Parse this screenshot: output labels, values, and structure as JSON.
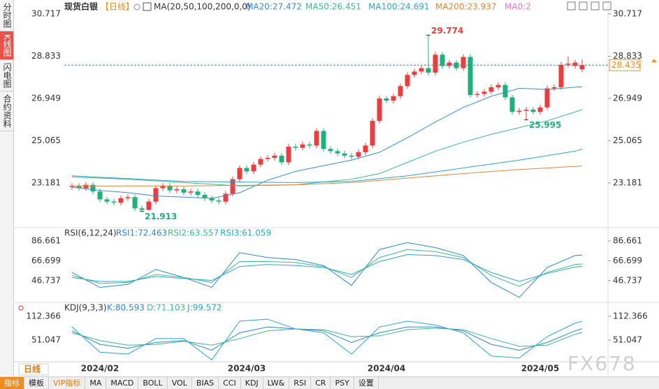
{
  "tabs": [
    "分时图",
    "K线图",
    "闪电图",
    "合约资料"
  ],
  "active_tab": 1,
  "period_selector": "日线",
  "watermark": "FX678",
  "ma0_label": "MA0:2",
  "toolbar": [
    "指标",
    "模板",
    "VIP指标",
    "MA",
    "MACD",
    "BOLL",
    "VOL",
    "BIAS",
    "CCI",
    "KDJ",
    "LW&",
    "RSI",
    "CR",
    "PSY",
    "设置"
  ],
  "chart_data": [
    {
      "type": "candlestick",
      "title": "现货白银",
      "period": "【日线】",
      "indicator": "MA(20,50,100,200,0,0)",
      "up_color": "#ea3d3d",
      "down_color": "#20b07c",
      "categories": [
        null,
        null,
        null,
        null,
        "2024/02",
        null,
        null,
        null,
        null,
        null,
        null,
        null,
        null,
        null,
        null,
        null,
        null,
        null,
        null,
        null,
        null,
        null,
        null,
        null,
        null,
        "2024/03",
        null,
        null,
        null,
        null,
        null,
        null,
        null,
        null,
        null,
        null,
        null,
        null,
        null,
        null,
        null,
        null,
        null,
        null,
        null,
        "2024/04",
        null,
        null,
        null,
        null,
        null,
        null,
        null,
        null,
        null,
        null,
        null,
        null,
        null,
        null,
        null,
        null,
        null,
        null,
        null,
        null,
        null,
        "2024/05",
        null,
        null,
        null,
        null,
        null,
        null
      ],
      "open": [
        23.0,
        23.05,
        22.95,
        23.1,
        22.8,
        22.45,
        22.35,
        22.3,
        22.5,
        22.55,
        22.05,
        21.98,
        22.35,
        22.95,
        23.05,
        22.85,
        22.9,
        22.75,
        22.8,
        22.65,
        22.5,
        22.4,
        22.35,
        22.7,
        23.35,
        23.85,
        23.7,
        24.0,
        24.25,
        24.3,
        24.4,
        24.1,
        24.8,
        24.75,
        24.9,
        24.85,
        25.5,
        24.7,
        24.6,
        24.5,
        24.4,
        24.35,
        24.55,
        24.85,
        25.95,
        26.95,
        26.85,
        27.05,
        27.5,
        28.0,
        28.15,
        28.3,
        28.1,
        28.9,
        28.4,
        28.55,
        28.3,
        28.8,
        27.1,
        27.15,
        27.25,
        27.45,
        27.55,
        27.0,
        26.35,
        26.4,
        26.45,
        26.35,
        26.55,
        27.4,
        27.45,
        28.45,
        28.4,
        28.25
      ],
      "high": [
        23.17,
        23.17,
        23.22,
        23.22,
        22.92,
        22.57,
        22.47,
        22.62,
        22.67,
        22.67,
        22.17,
        22.47,
        23.07,
        23.17,
        23.17,
        23.02,
        23.02,
        22.92,
        22.92,
        22.77,
        22.62,
        22.52,
        22.82,
        23.47,
        23.97,
        23.97,
        24.12,
        24.37,
        24.42,
        24.52,
        24.52,
        24.92,
        24.92,
        25.02,
        25.02,
        25.62,
        25.62,
        24.82,
        24.72,
        24.62,
        24.52,
        24.67,
        24.97,
        26.07,
        27.07,
        27.07,
        27.17,
        27.62,
        28.12,
        28.27,
        28.42,
        29.774,
        29.02,
        29.02,
        28.67,
        28.67,
        28.92,
        28.92,
        27.27,
        27.37,
        27.57,
        27.67,
        27.67,
        27.12,
        26.52,
        26.57,
        26.57,
        26.67,
        27.52,
        27.57,
        28.57,
        28.82,
        28.67,
        28.7
      ],
      "low": [
        22.88,
        22.83,
        22.83,
        22.68,
        22.33,
        22.23,
        22.18,
        22.18,
        22.38,
        21.93,
        21.913,
        21.95,
        22.23,
        22.83,
        22.73,
        22.73,
        22.63,
        22.63,
        22.53,
        22.38,
        22.28,
        22.23,
        22.23,
        22.58,
        23.23,
        23.58,
        23.58,
        23.88,
        24.13,
        24.18,
        23.98,
        23.98,
        24.63,
        24.63,
        24.73,
        24.73,
        24.58,
        24.48,
        24.38,
        24.28,
        24.23,
        24.23,
        24.43,
        24.73,
        25.83,
        26.73,
        26.73,
        26.93,
        27.38,
        27.88,
        28.03,
        27.98,
        27.98,
        28.28,
        28.28,
        28.18,
        28.18,
        26.98,
        26.98,
        27.03,
        27.13,
        27.33,
        26.88,
        26.23,
        26.23,
        25.995,
        26.23,
        26.23,
        26.43,
        27.28,
        27.33,
        28.33,
        28.28,
        28.13
      ],
      "close": [
        23.05,
        22.95,
        23.1,
        22.8,
        22.45,
        22.35,
        22.3,
        22.5,
        22.55,
        22.05,
        21.98,
        22.35,
        22.95,
        23.05,
        22.85,
        22.9,
        22.75,
        22.8,
        22.65,
        22.5,
        22.4,
        22.35,
        22.7,
        23.35,
        23.85,
        23.7,
        24.0,
        24.25,
        24.3,
        24.4,
        24.1,
        24.8,
        24.75,
        24.9,
        24.85,
        25.5,
        24.7,
        24.6,
        24.5,
        24.4,
        24.35,
        24.55,
        24.85,
        25.95,
        26.95,
        26.85,
        27.05,
        27.5,
        28.0,
        28.15,
        28.3,
        28.1,
        28.9,
        28.4,
        28.55,
        28.3,
        28.8,
        27.1,
        27.15,
        27.25,
        27.45,
        27.55,
        27.0,
        26.35,
        26.4,
        26.45,
        26.35,
        26.55,
        27.4,
        27.45,
        28.45,
        28.5,
        28.55,
        28.435
      ],
      "series": [
        {
          "name": "MA20:27.472",
          "color": "#3a8ad8",
          "x": [
            0,
            4,
            8,
            12,
            16,
            20,
            24,
            28,
            32,
            36,
            40,
            44,
            48,
            52,
            56,
            60,
            64,
            68,
            72,
            73
          ],
          "values": [
            23.0,
            22.85,
            22.75,
            22.6,
            22.55,
            22.5,
            22.75,
            23.3,
            23.7,
            23.95,
            24.2,
            24.55,
            25.2,
            25.9,
            26.55,
            27.05,
            27.4,
            27.35,
            27.45,
            27.472
          ]
        },
        {
          "name": "MA50:26.451",
          "color": "#3dbb85",
          "x": [
            0,
            8,
            16,
            24,
            32,
            40,
            44,
            48,
            52,
            56,
            60,
            64,
            68,
            72,
            73
          ],
          "values": [
            23.45,
            23.35,
            23.2,
            23.05,
            23.1,
            23.35,
            23.6,
            24.1,
            24.6,
            25.0,
            25.35,
            25.65,
            25.95,
            26.35,
            26.451
          ]
        },
        {
          "name": "MA100:24.691",
          "color": "#2aa6c9",
          "x": [
            0,
            16,
            32,
            40,
            48,
            56,
            64,
            72,
            73
          ],
          "values": [
            23.5,
            23.25,
            23.2,
            23.25,
            23.5,
            23.85,
            24.2,
            24.6,
            24.691
          ]
        },
        {
          "name": "MA200:23.937",
          "color": "#e5843a",
          "x": [
            0,
            16,
            32,
            40,
            48,
            56,
            64,
            72,
            73
          ],
          "values": [
            23.05,
            23.05,
            23.1,
            23.2,
            23.4,
            23.6,
            23.78,
            23.92,
            23.937
          ]
        }
      ],
      "annotations": [
        {
          "index": 51,
          "value": 29.774
        },
        {
          "index": 10,
          "value": 21.913
        },
        {
          "index": 65,
          "value": 25.995
        }
      ],
      "last_price": 28.435,
      "last_price_color": "#f08c1e",
      "ylim": [
        21.219,
        31.028
      ],
      "yticks": [
        30.717,
        28.833,
        26.949,
        25.065,
        23.181
      ]
    },
    {
      "type": "line",
      "title": "RSI(6,12,24)",
      "x": [
        0,
        4,
        8,
        12,
        16,
        20,
        24,
        28,
        32,
        36,
        40,
        44,
        48,
        52,
        56,
        60,
        64,
        68,
        72,
        73
      ],
      "series": [
        {
          "name": "RSI1:72.463",
          "color": "#2f86d6",
          "values": [
            55,
            40,
            43,
            58,
            50,
            40,
            75,
            70,
            68,
            62,
            42,
            78,
            85,
            80,
            72,
            45,
            30,
            60,
            72,
            72.463
          ]
        },
        {
          "name": "RSI2:63.557",
          "color": "#3dbb85",
          "values": [
            52,
            44,
            45,
            53,
            50,
            45,
            66,
            66,
            65,
            61,
            50,
            70,
            78,
            76,
            70,
            52,
            41,
            55,
            63,
            63.557
          ]
        },
        {
          "name": "RSI3:61.059",
          "color": "#2aa6c9",
          "values": [
            50,
            46,
            46,
            51,
            49,
            47,
            61,
            63,
            62,
            60,
            53,
            66,
            73,
            72,
            68,
            55,
            46,
            54,
            60.5,
            61.059
          ]
        }
      ],
      "ylim": [
        27.06,
        97.17
      ],
      "yticks": [
        86.661,
        66.699,
        46.737
      ]
    },
    {
      "type": "line",
      "title": "KDJ(9,3,3)",
      "x": [
        0,
        4,
        8,
        12,
        16,
        20,
        24,
        28,
        32,
        36,
        40,
        44,
        48,
        52,
        56,
        60,
        64,
        68,
        72,
        73
      ],
      "series": [
        {
          "name": "K:80.593",
          "color": "#2f86d6",
          "values": [
            75,
            40,
            30,
            45,
            50,
            25,
            70,
            85,
            80,
            75,
            45,
            70,
            85,
            85,
            75,
            40,
            25,
            45,
            75,
            80.593
          ]
        },
        {
          "name": "D:71.103",
          "color": "#3dbb85",
          "values": [
            70,
            50,
            38,
            40,
            48,
            38,
            55,
            75,
            80,
            78,
            60,
            62,
            78,
            82,
            78,
            55,
            35,
            38,
            66,
            71.103
          ]
        },
        {
          "name": "J:99.572",
          "color": "#2aa6c9",
          "values": [
            85,
            20,
            15,
            55,
            55,
            0,
            100,
            105,
            80,
            70,
            15,
            85,
            100,
            90,
            70,
            10,
            5,
            60,
            95,
            99.572
          ]
        }
      ],
      "ylim": [
        -4.86,
        141.22
      ],
      "yticks": [
        112.366,
        51.047
      ]
    }
  ]
}
